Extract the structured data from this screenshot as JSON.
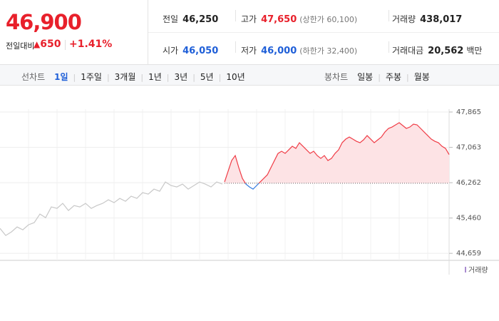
{
  "price": {
    "current": "46,900",
    "change_label": "전일대비",
    "change": "650",
    "change_pct": "+1.41%"
  },
  "stats": [
    {
      "label": "전일",
      "value": "46,250"
    },
    {
      "label": "고가",
      "value": "47,650",
      "note": "(상한가 60,100)"
    },
    {
      "label": "거래량",
      "value": "438,017"
    },
    {
      "label": "시가",
      "value": "46,050"
    },
    {
      "label": "저가",
      "value": "46,000",
      "note": "(하한가 32,400)"
    },
    {
      "label": "거래대금",
      "value": "20,562",
      "unit": "백만"
    }
  ],
  "tabs": {
    "line_label": "선차트",
    "line": [
      "1일",
      "1주일",
      "3개월",
      "1년",
      "3년",
      "5년",
      "10년"
    ],
    "selected": 0,
    "candle_label": "봉차트",
    "candle": [
      "일봉",
      "주봉",
      "월봉"
    ]
  },
  "chart_data": {
    "type": "line",
    "ylim": [
      44500,
      47930
    ],
    "yticks": [
      {
        "value": 47865,
        "label": "47,865"
      },
      {
        "value": 47063,
        "label": "47,063"
      },
      {
        "value": 46262,
        "label": "46,262"
      },
      {
        "value": 45460,
        "label": "45,460"
      },
      {
        "value": 44659,
        "label": "44,659"
      }
    ],
    "grid": true,
    "reference": 46250,
    "up_color": "#f03c46",
    "down_color": "#2f7ae0",
    "fill_color": "#fde3e5",
    "series": [
      {
        "color": "#c8c8c8",
        "values": [
          45226,
          45064,
          45145,
          45258,
          45194,
          45307,
          45356,
          45550,
          45469,
          45712,
          45679,
          45793,
          45631,
          45744,
          45712,
          45793,
          45679,
          45744,
          45793,
          45874,
          45809,
          45906,
          45841,
          45955,
          45906,
          46036,
          46003,
          46116,
          46068,
          46278,
          46197,
          46165,
          46230,
          46116,
          46197,
          46278,
          46230,
          46165,
          46278,
          46230
        ]
      },
      {
        "values": [
          46278,
          46521,
          46764,
          46877,
          46602,
          46359,
          46230,
          46165,
          46116,
          46197,
          46278,
          46359,
          46440,
          46602,
          46764,
          46926,
          46975,
          46926,
          47007,
          47088,
          47039,
          47169,
          47088,
          47007,
          46926,
          46975,
          46877,
          46813,
          46877,
          46764,
          46813,
          46926,
          47007,
          47169,
          47250,
          47298,
          47250,
          47201,
          47169,
          47234,
          47331,
          47250,
          47169,
          47234,
          47298,
          47412,
          47493,
          47525,
          47574,
          47622,
          47558,
          47493,
          47525,
          47590,
          47574,
          47493,
          47412,
          47331,
          47250,
          47201,
          47169,
          47088,
          47039,
          46900
        ]
      }
    ],
    "legend": "거래량",
    "legend_color": "#a98bd0"
  }
}
